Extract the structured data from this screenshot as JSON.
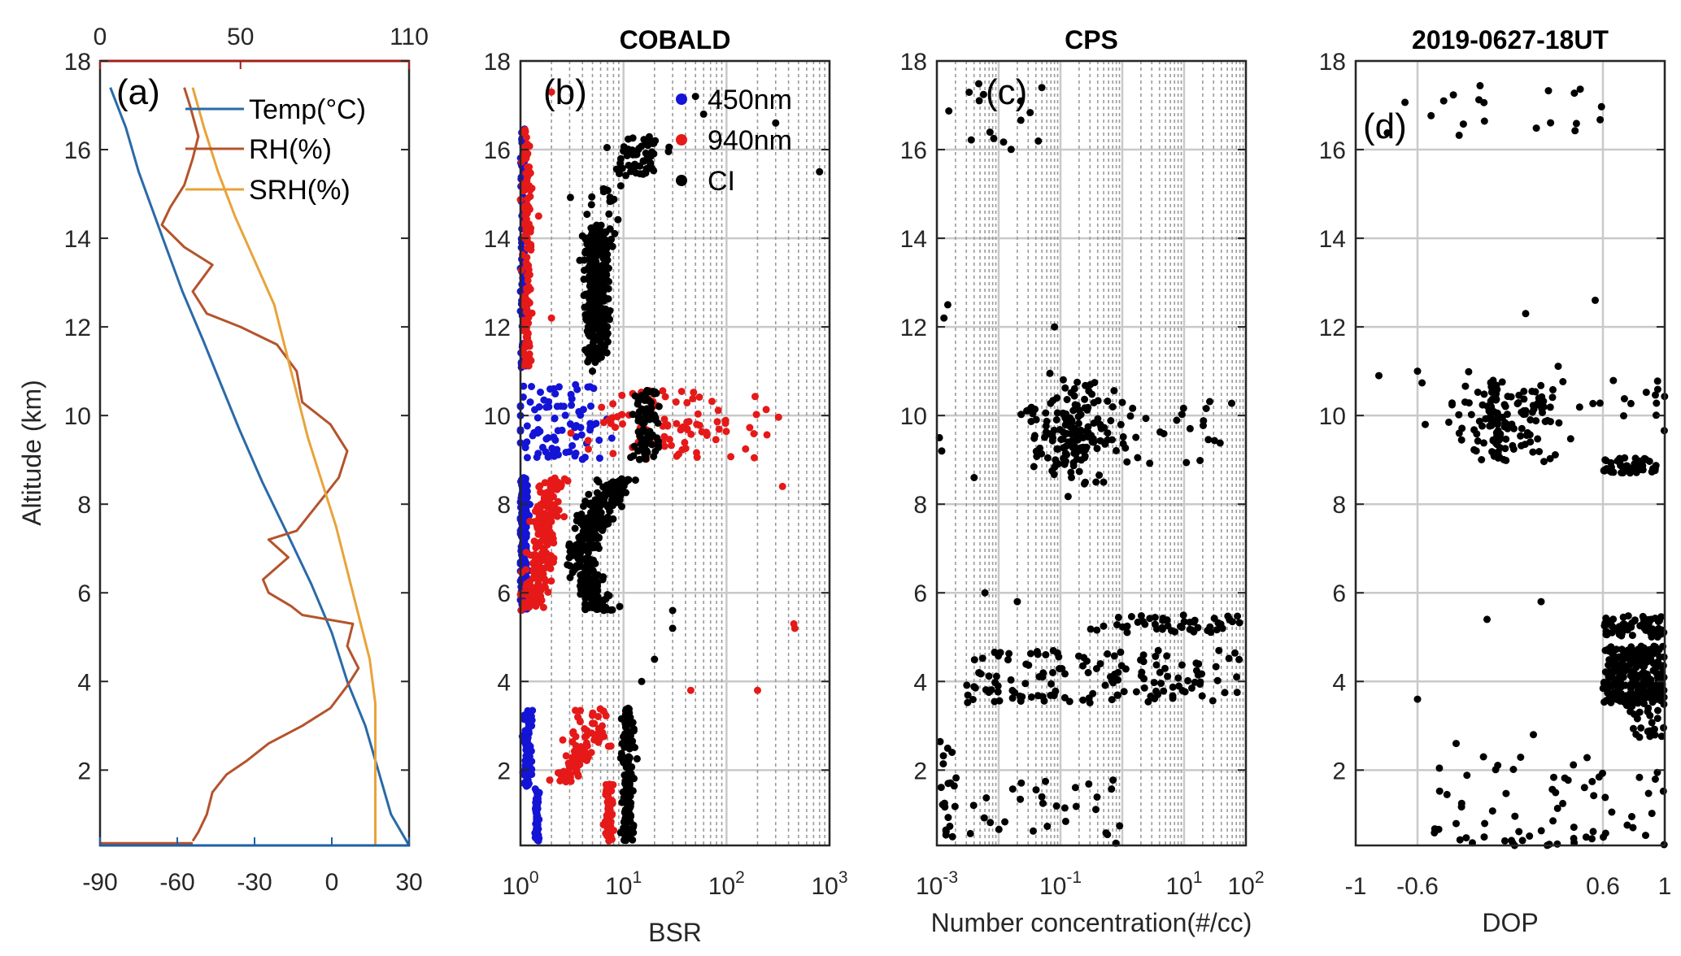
{
  "chart_data": [
    {
      "panel": "(a)",
      "type": "line",
      "title": "",
      "ylabel": "Altitude (km)",
      "ylim": [
        0.3,
        18
      ],
      "yticks": [
        2,
        4,
        6,
        8,
        10,
        12,
        14,
        16,
        18
      ],
      "x_bottom": {
        "lim": [
          -90,
          30
        ],
        "ticks": [
          -90,
          -60,
          -30,
          0,
          30
        ],
        "color": "#1f5fa6"
      },
      "x_top": {
        "lim": [
          0,
          110
        ],
        "ticks": [
          0,
          50,
          110
        ],
        "color": "#a0201c"
      },
      "legend_position": "top-right",
      "series": [
        {
          "name": "Temp(°C)",
          "axis": "bottom",
          "color": "#2a6aa8",
          "points": [
            [
              -86,
              17.4
            ],
            [
              -80,
              16.5
            ],
            [
              -75,
              15.5
            ],
            [
              -70,
              14.7
            ],
            [
              -65,
              13.9
            ],
            [
              -58,
              12.8
            ],
            [
              -50,
              11.7
            ],
            [
              -43,
              10.7
            ],
            [
              -36,
              9.7
            ],
            [
              -27,
              8.5
            ],
            [
              -17,
              7.3
            ],
            [
              -8,
              6.2
            ],
            [
              0,
              5.1
            ],
            [
              6,
              4.0
            ],
            [
              13,
              3.0
            ],
            [
              18,
              2.0
            ],
            [
              23,
              1.0
            ],
            [
              30,
              0.3
            ]
          ]
        },
        {
          "name": "RH(%)",
          "axis": "top",
          "color": "#b5532c",
          "points": [
            [
              30,
              17.4
            ],
            [
              32,
              17.0
            ],
            [
              35,
              16.3
            ],
            [
              33,
              15.8
            ],
            [
              30,
              15.2
            ],
            [
              25,
              14.7
            ],
            [
              22,
              14.3
            ],
            [
              30,
              13.8
            ],
            [
              40,
              13.4
            ],
            [
              33,
              12.8
            ],
            [
              38,
              12.3
            ],
            [
              50,
              12.0
            ],
            [
              63,
              11.6
            ],
            [
              70,
              11.0
            ],
            [
              72,
              10.3
            ],
            [
              82,
              9.8
            ],
            [
              88,
              9.2
            ],
            [
              85,
              8.6
            ],
            [
              80,
              8.2
            ],
            [
              75,
              7.8
            ],
            [
              70,
              7.4
            ],
            [
              60,
              7.2
            ],
            [
              67,
              6.8
            ],
            [
              58,
              6.3
            ],
            [
              60,
              6.0
            ],
            [
              68,
              5.7
            ],
            [
              72,
              5.5
            ],
            [
              90,
              5.3
            ],
            [
              88,
              4.8
            ],
            [
              92,
              4.3
            ],
            [
              88,
              3.9
            ],
            [
              82,
              3.4
            ],
            [
              72,
              3.0
            ],
            [
              60,
              2.6
            ],
            [
              52,
              2.2
            ],
            [
              45,
              1.9
            ],
            [
              40,
              1.5
            ],
            [
              38,
              1.0
            ],
            [
              35,
              0.6
            ],
            [
              33,
              0.4
            ]
          ]
        },
        {
          "name": "SRH(%)",
          "axis": "top",
          "color": "#e8a33a",
          "points": [
            [
              33,
              17.4
            ],
            [
              37,
              16.5
            ],
            [
              42,
              15.5
            ],
            [
              48,
              14.5
            ],
            [
              55,
              13.5
            ],
            [
              62,
              12.5
            ],
            [
              66,
              11.5
            ],
            [
              70,
              10.5
            ],
            [
              74,
              9.5
            ],
            [
              79,
              8.5
            ],
            [
              84,
              7.5
            ],
            [
              88,
              6.5
            ],
            [
              92,
              5.5
            ],
            [
              96,
              4.5
            ],
            [
              98,
              3.5
            ],
            [
              98,
              2.0
            ],
            [
              98,
              0.3
            ]
          ]
        }
      ]
    },
    {
      "panel": "(b)",
      "type": "scatter",
      "title": "COBALD",
      "xlabel": "BSR",
      "x_scale": "log",
      "xlim": [
        1,
        1000
      ],
      "xticks": [
        1,
        10,
        100,
        1000
      ],
      "ylim": [
        0.3,
        18
      ],
      "legend_position": "top-right",
      "series": [
        {
          "name": "450nm",
          "color": "#1414d6"
        },
        {
          "name": "940nm",
          "color": "#e61919"
        },
        {
          "name": "CI",
          "color": "#000000"
        }
      ]
    },
    {
      "panel": "(c)",
      "type": "scatter",
      "title": "CPS",
      "xlabel": "Number concentration(#/cc)",
      "x_scale": "log",
      "xlim": [
        0.001,
        100
      ],
      "xticks": [
        0.001,
        0.1,
        10,
        100
      ],
      "ylim": [
        0.3,
        18
      ],
      "series": [
        {
          "color": "#000000"
        }
      ]
    },
    {
      "panel": "(d)",
      "type": "scatter",
      "title": "2019-0627-18UT",
      "xlabel": "DOP",
      "xlim": [
        -1,
        1
      ],
      "xticks": [
        -1,
        -0.6,
        0.6,
        1
      ],
      "ylim": [
        0.3,
        18
      ],
      "series": [
        {
          "color": "#000000"
        }
      ]
    }
  ]
}
